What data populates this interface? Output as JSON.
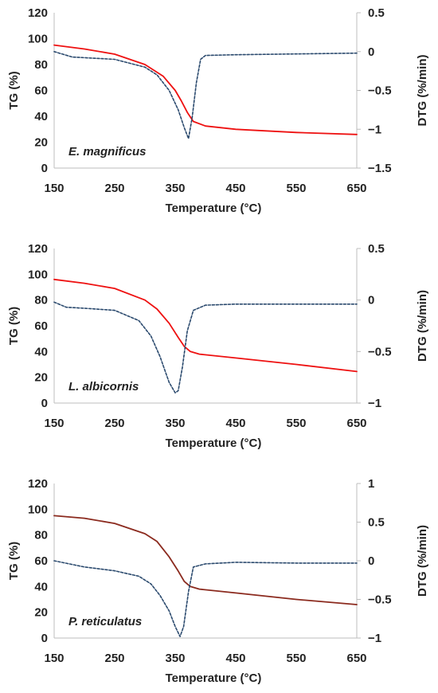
{
  "chart_data": [
    {
      "type": "line",
      "annotation": "E. magnificus",
      "xlabel": "Temperature (°C)",
      "ylabel": "TG (%)",
      "y2label": "DTG (%/min)",
      "xlim": [
        150,
        650
      ],
      "ylim": [
        0,
        120
      ],
      "y2lim": [
        -1.5,
        0.5
      ],
      "xticks": [
        "150",
        "250",
        "350",
        "450",
        "550",
        "650"
      ],
      "yticks": [
        "0",
        "20",
        "40",
        "60",
        "80",
        "100",
        "120"
      ],
      "y2ticks": [
        "0.5",
        "0",
        "-0.5",
        "-1",
        "-1.5"
      ],
      "series": [
        {
          "axis": "left",
          "color": "#ee1111",
          "style": "solid",
          "x": [
            150,
            200,
            250,
            300,
            330,
            350,
            360,
            370,
            380,
            400,
            450,
            550,
            650
          ],
          "y": [
            95,
            92,
            88,
            80,
            71,
            60,
            52,
            43,
            36,
            32.5,
            30,
            27.5,
            26
          ]
        },
        {
          "axis": "right",
          "color": "#2b4a6e",
          "style": "dashed",
          "x": [
            150,
            180,
            250,
            300,
            320,
            340,
            355,
            365,
            372,
            378,
            385,
            392,
            400,
            450,
            550,
            650
          ],
          "y": [
            0,
            -0.07,
            -0.1,
            -0.2,
            -0.3,
            -0.5,
            -0.75,
            -0.98,
            -1.12,
            -0.85,
            -0.4,
            -0.1,
            -0.05,
            -0.04,
            -0.03,
            -0.02
          ]
        }
      ]
    },
    {
      "type": "line",
      "annotation": "L. albicornis",
      "xlabel": "Temperature (°C)",
      "ylabel": "TG (%)",
      "y2label": "DTG (%/min)",
      "xlim": [
        150,
        650
      ],
      "ylim": [
        0,
        120
      ],
      "y2lim": [
        -1,
        0.5
      ],
      "xticks": [
        "150",
        "250",
        "350",
        "450",
        "550",
        "650"
      ],
      "yticks": [
        "0",
        "20",
        "40",
        "60",
        "80",
        "100",
        "120"
      ],
      "y2ticks": [
        "0.5",
        "0",
        "-0.5",
        "-1"
      ],
      "series": [
        {
          "axis": "left",
          "color": "#ee1111",
          "style": "solid",
          "x": [
            150,
            200,
            250,
            300,
            320,
            340,
            355,
            365,
            375,
            390,
            450,
            550,
            650
          ],
          "y": [
            96,
            93,
            89,
            80,
            73,
            62,
            51,
            44,
            40,
            38,
            35,
            30,
            24.5
          ]
        },
        {
          "axis": "right",
          "color": "#2b4a6e",
          "style": "dashed",
          "x": [
            150,
            170,
            200,
            250,
            290,
            310,
            325,
            340,
            350,
            355,
            362,
            370,
            380,
            400,
            450,
            550,
            650
          ],
          "y": [
            -0.02,
            -0.07,
            -0.08,
            -0.1,
            -0.2,
            -0.35,
            -0.55,
            -0.8,
            -0.9,
            -0.88,
            -0.65,
            -0.3,
            -0.1,
            -0.05,
            -0.04,
            -0.04,
            -0.04
          ]
        }
      ]
    },
    {
      "type": "line",
      "annotation": "P. reticulatus",
      "xlabel": "Temperature (°C)",
      "ylabel": "TG (%)",
      "y2label": "DTG (%/min)",
      "xlim": [
        150,
        650
      ],
      "ylim": [
        0,
        120
      ],
      "y2lim": [
        -1,
        1
      ],
      "xticks": [
        "150",
        "250",
        "350",
        "450",
        "550",
        "650"
      ],
      "yticks": [
        "0",
        "20",
        "40",
        "60",
        "80",
        "100",
        "120"
      ],
      "y2ticks": [
        "1",
        "0.5",
        "0",
        "-0.5",
        "-1"
      ],
      "series": [
        {
          "axis": "left",
          "color": "#8b2a1e",
          "style": "solid",
          "x": [
            150,
            200,
            250,
            300,
            320,
            340,
            355,
            365,
            375,
            390,
            450,
            550,
            650
          ],
          "y": [
            95,
            93,
            89,
            81,
            75,
            63,
            52,
            44,
            40,
            38,
            35,
            30,
            26
          ]
        },
        {
          "axis": "right",
          "color": "#2b4a6e",
          "style": "dashed",
          "x": [
            150,
            200,
            250,
            290,
            310,
            325,
            340,
            350,
            358,
            364,
            372,
            380,
            400,
            450,
            550,
            650
          ],
          "y": [
            0,
            -0.08,
            -0.13,
            -0.2,
            -0.3,
            -0.45,
            -0.65,
            -0.85,
            -0.98,
            -0.85,
            -0.4,
            -0.08,
            -0.04,
            -0.02,
            -0.03,
            -0.03
          ]
        }
      ]
    }
  ]
}
